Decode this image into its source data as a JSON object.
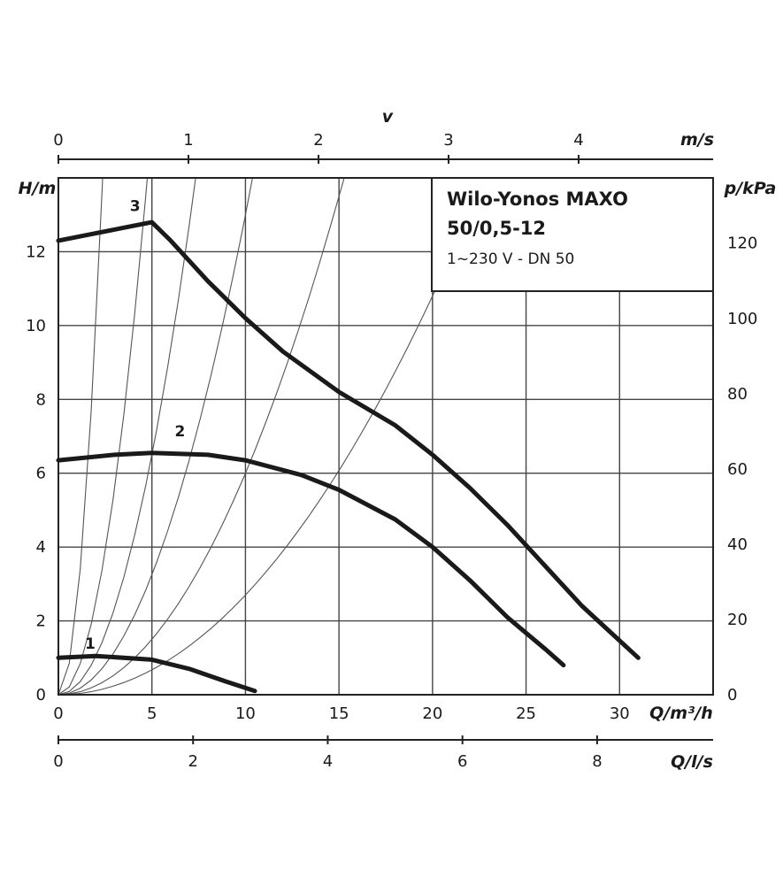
{
  "chart_data": {
    "type": "line",
    "title": "Wilo-Yonos MAXO",
    "subtitle": "50/0,5-12",
    "spec": "1~230 V - DN 50",
    "xlabel": "Q/m³/h",
    "ylabel": "H/m",
    "y2label": "p/kPa",
    "x_top_label": "m/s",
    "x_top_symbol": "v",
    "x_bottom2_label": "Q/l/s",
    "xlim": [
      0,
      35
    ],
    "ylim": [
      0,
      14
    ],
    "x_ticks": [
      "0",
      "5",
      "10",
      "15",
      "20",
      "25",
      "30"
    ],
    "y_ticks": [
      "0",
      "2",
      "4",
      "6",
      "8",
      "10",
      "12"
    ],
    "y2_ticks": [
      "0",
      "20",
      "40",
      "60",
      "80",
      "100",
      "120"
    ],
    "top_ticks": [
      "0",
      "1",
      "2",
      "3",
      "4"
    ],
    "ls_ticks": [
      "0",
      "2",
      "4",
      "6",
      "8"
    ],
    "grid": true,
    "series": [
      {
        "name": "1",
        "x": [
          0,
          2,
          5,
          7,
          9,
          10.5
        ],
        "y": [
          1.0,
          1.05,
          0.95,
          0.7,
          0.35,
          0.1
        ]
      },
      {
        "name": "2",
        "x": [
          0,
          3,
          5,
          8,
          10,
          13,
          15,
          18,
          20,
          22,
          24,
          26,
          27
        ],
        "y": [
          6.35,
          6.5,
          6.55,
          6.5,
          6.35,
          5.95,
          5.55,
          4.75,
          4.0,
          3.1,
          2.1,
          1.25,
          0.8
        ]
      },
      {
        "name": "3",
        "x": [
          0,
          2,
          4,
          5,
          6,
          8,
          10,
          12,
          15,
          18,
          20,
          22,
          24,
          26,
          28,
          29.5,
          31
        ],
        "y": [
          12.3,
          12.5,
          12.7,
          12.8,
          12.3,
          11.2,
          10.2,
          9.3,
          8.2,
          7.3,
          6.5,
          5.6,
          4.6,
          3.5,
          2.4,
          1.7,
          1.0
        ]
      }
    ]
  }
}
